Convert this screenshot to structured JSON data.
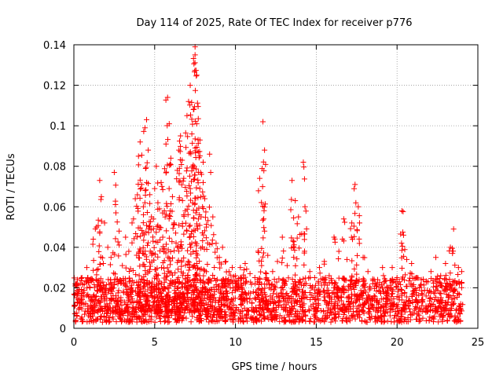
{
  "chart_data": {
    "type": "scatter",
    "title": "Day 114 of 2025, Rate Of TEC Index for receiver p776",
    "xlabel": "GPS time / hours",
    "ylabel": "ROTI / TECUs",
    "xlim": [
      0,
      25
    ],
    "ylim": [
      0,
      0.14
    ],
    "xticks": [
      0,
      5,
      10,
      15,
      20,
      25
    ],
    "xtick_labels": [
      "0",
      "5",
      "10",
      "15",
      "20",
      "25"
    ],
    "yticks": [
      0,
      0.02,
      0.04,
      0.06,
      0.08,
      0.1,
      0.12,
      0.14
    ],
    "ytick_labels": [
      "0",
      "0.02",
      "0.04",
      "0.06",
      "0.08",
      "0.1",
      "0.12",
      "0.14"
    ],
    "grid": true,
    "marker": "+",
    "color": "#ff0000",
    "series": [
      {
        "name": "ROTI",
        "x": [
          0.1,
          0.3,
          0.5,
          0.8,
          1.0,
          1.2,
          1.4,
          1.6,
          1.7,
          1.9,
          2.1,
          2.3,
          2.5,
          2.6,
          2.8,
          3.0,
          3.2,
          3.4,
          3.6,
          3.8,
          4.0,
          4.1,
          4.2,
          4.3,
          4.4,
          4.5,
          4.6,
          4.7,
          4.8,
          4.9,
          5.0,
          5.1,
          5.2,
          5.3,
          5.4,
          5.5,
          5.6,
          5.7,
          5.8,
          5.9,
          6.0,
          6.1,
          6.2,
          6.3,
          6.4,
          6.5,
          6.6,
          6.7,
          6.8,
          6.9,
          7.0,
          7.1,
          7.2,
          7.3,
          7.4,
          7.5,
          7.5,
          7.6,
          7.6,
          7.7,
          7.8,
          7.9,
          8.0,
          8.1,
          8.2,
          8.4,
          8.6,
          8.8,
          9.0,
          9.2,
          9.4,
          9.6,
          9.8,
          10.0,
          10.3,
          10.6,
          10.9,
          11.2,
          11.5,
          11.7,
          11.8,
          12.0,
          12.3,
          12.6,
          12.9,
          13.2,
          13.5,
          13.7,
          13.9,
          14.2,
          14.3,
          14.6,
          14.9,
          15.2,
          15.5,
          15.8,
          16.1,
          16.4,
          16.7,
          16.9,
          17.2,
          17.4,
          17.6,
          17.9,
          18.2,
          18.5,
          18.8,
          19.1,
          19.4,
          19.7,
          20.0,
          20.3,
          20.4,
          20.6,
          20.9,
          21.2,
          21.5,
          21.8,
          22.1,
          22.4,
          22.7,
          23.0,
          23.3,
          23.5,
          23.8,
          24.0
        ],
        "y": [
          0.022,
          0.018,
          0.025,
          0.03,
          0.02,
          0.044,
          0.05,
          0.073,
          0.065,
          0.052,
          0.04,
          0.035,
          0.077,
          0.057,
          0.048,
          0.031,
          0.045,
          0.038,
          0.052,
          0.064,
          0.085,
          0.092,
          0.071,
          0.06,
          0.099,
          0.103,
          0.088,
          0.066,
          0.055,
          0.043,
          0.069,
          0.08,
          0.062,
          0.05,
          0.072,
          0.045,
          0.058,
          0.091,
          0.114,
          0.101,
          0.084,
          0.065,
          0.052,
          0.047,
          0.078,
          0.088,
          0.095,
          0.083,
          0.074,
          0.058,
          0.105,
          0.112,
          0.12,
          0.096,
          0.108,
          0.139,
          0.135,
          0.125,
          0.101,
          0.087,
          0.093,
          0.076,
          0.082,
          0.064,
          0.05,
          0.086,
          0.055,
          0.042,
          0.035,
          0.04,
          0.033,
          0.028,
          0.03,
          0.026,
          0.03,
          0.032,
          0.027,
          0.025,
          0.074,
          0.102,
          0.088,
          0.036,
          0.028,
          0.033,
          0.045,
          0.031,
          0.073,
          0.063,
          0.055,
          0.082,
          0.06,
          0.028,
          0.025,
          0.03,
          0.033,
          0.026,
          0.045,
          0.038,
          0.054,
          0.034,
          0.052,
          0.071,
          0.06,
          0.035,
          0.028,
          0.022,
          0.024,
          0.03,
          0.02,
          0.03,
          0.025,
          0.058,
          0.046,
          0.034,
          0.032,
          0.025,
          0.024,
          0.023,
          0.028,
          0.035,
          0.026,
          0.032,
          0.04,
          0.049,
          0.03,
          0.028
        ],
        "baseline_band": [
          0.003,
          0.025
        ]
      }
    ]
  }
}
